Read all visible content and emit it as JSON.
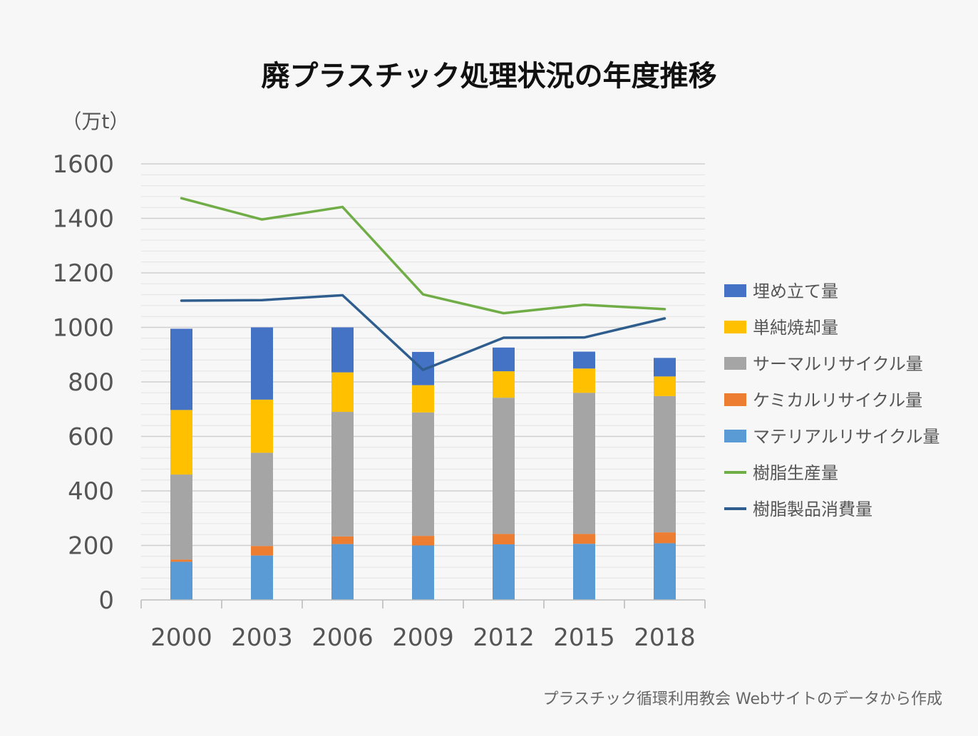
{
  "chart_data": {
    "type": "bar",
    "title": "廃プラスチック処理状況の年度推移",
    "unit_label": "（万t）",
    "categories": [
      "2000",
      "2003",
      "2006",
      "2009",
      "2012",
      "2015",
      "2018"
    ],
    "ylim": [
      0,
      1600
    ],
    "yticks": [
      "0",
      "200",
      "400",
      "600",
      "800",
      "1000",
      "1200",
      "1400",
      "1600"
    ],
    "ytick_values": [
      0,
      200,
      400,
      600,
      800,
      1000,
      1200,
      1400,
      1600
    ],
    "minor_grid_step": 40,
    "stacked": true,
    "series": [
      {
        "name": "マテリアルリサイクル量",
        "color": "#5b9bd5",
        "values": [
          140,
          163,
          205,
          200,
          204,
          206,
          208
        ]
      },
      {
        "name": "ケミカルリサイクル量",
        "color": "#ed7d31",
        "values": [
          8,
          35,
          28,
          35,
          38,
          36,
          40
        ]
      },
      {
        "name": "サーマルリサイクル量",
        "color": "#a5a5a5",
        "values": [
          312,
          342,
          457,
          453,
          500,
          518,
          500
        ]
      },
      {
        "name": "単純焼却量",
        "color": "#ffc000",
        "values": [
          237,
          195,
          145,
          100,
          97,
          89,
          72
        ]
      },
      {
        "name": "埋め立て量",
        "color": "#4472c4",
        "values": [
          298,
          265,
          165,
          122,
          87,
          62,
          68
        ]
      }
    ],
    "lines": [
      {
        "name": "樹脂生産量",
        "color": "#70ad47",
        "values": [
          1474,
          1396,
          1442,
          1121,
          1052,
          1083,
          1067
        ]
      },
      {
        "name": "樹脂製品消費量",
        "color": "#2f5e8e",
        "values": [
          1098,
          1100,
          1118,
          844,
          962,
          963,
          1033
        ]
      }
    ],
    "legend": {
      "placement": "right",
      "order": [
        "埋め立て量",
        "単純焼却量",
        "サーマルリサイクル量",
        "ケミカルリサイクル量",
        "マテリアルリサイクル量",
        "樹脂生産量",
        "樹脂製品消費量"
      ]
    },
    "grid": true
  },
  "source_note": "プラスチック循環利用教会 Webサイトのデータから作成"
}
